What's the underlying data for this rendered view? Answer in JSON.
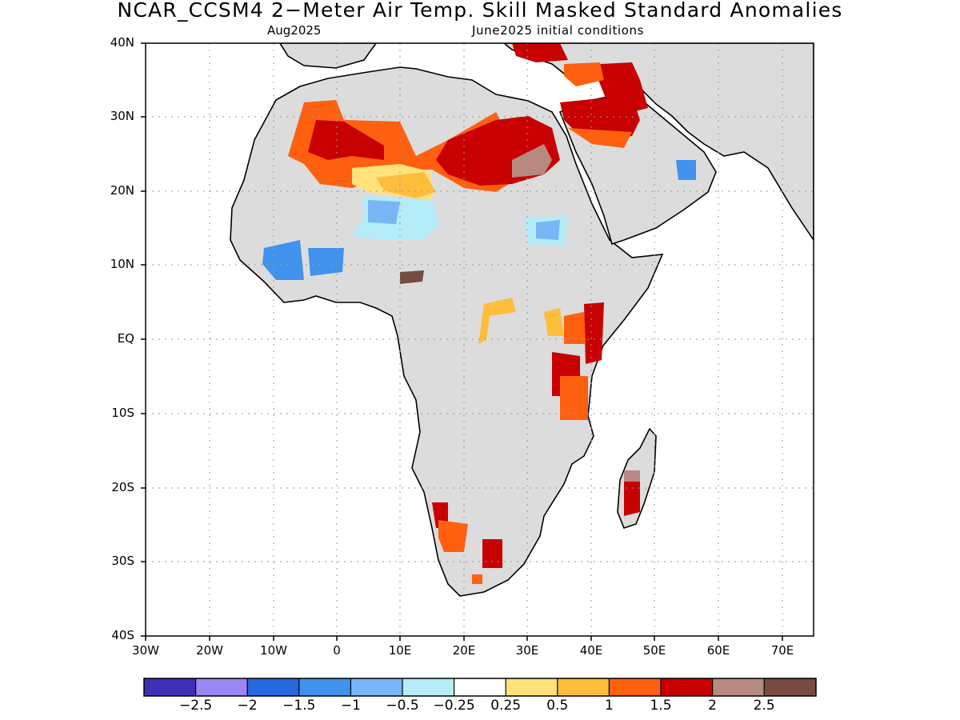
{
  "map": {
    "title": "NCAR_CCSM4 2−Meter Air Temp. Skill Masked Standard Anomalies",
    "subtitle_left": "Aug2025",
    "subtitle_right": "June2025 initial conditions",
    "lon_range": [
      -30,
      75
    ],
    "lat_range": [
      -40,
      40
    ],
    "lat_labels": [
      "40N",
      "30N",
      "20N",
      "10N",
      "EQ",
      "10S",
      "20S",
      "30S",
      "40S"
    ],
    "lon_labels": [
      "30W",
      "20W",
      "10W",
      "0",
      "10E",
      "20E",
      "30E",
      "40E",
      "50E",
      "60E",
      "70E"
    ],
    "grid": "dotted",
    "masked_color": "#dcdcdc",
    "ocean_color": "#ffffff"
  },
  "colorbar": {
    "colors": [
      "#3f2fb4",
      "#9b87f2",
      "#2568e0",
      "#3f93ec",
      "#78b6f5",
      "#b4ecf8",
      "#ffffff",
      "#ffe27a",
      "#ffbd3c",
      "#ff6010",
      "#c80000",
      "#b68a80",
      "#774c40"
    ],
    "labels": [
      "−2.5",
      "−2",
      "−1.5",
      "−1",
      "−0.5",
      "−0.25",
      "0.25",
      "0.5",
      "1",
      "1.5",
      "2",
      "2.5"
    ]
  }
}
